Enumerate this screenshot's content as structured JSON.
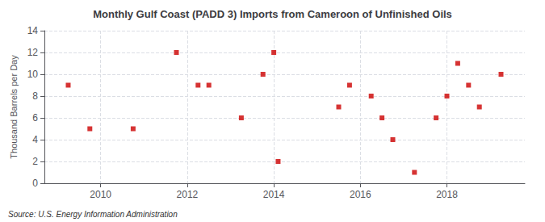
{
  "chart_data": {
    "type": "scatter",
    "title": "Monthly Gulf Coast (PADD 3) Imports from Cameroon of Unfinished Oils",
    "y_label": "Thousand Barrels per Day",
    "annotation": "Source: U.S. Energy Information Administration",
    "x": [
      2009.25,
      2009.75,
      2010.75,
      2011.75,
      2012.25,
      2012.5,
      2013.25,
      2013.75,
      2014.0,
      2014.1,
      2015.5,
      2015.75,
      2016.25,
      2016.5,
      2016.75,
      2017.25,
      2017.75,
      2018.0,
      2018.25,
      2018.5,
      2018.75,
      2019.25
    ],
    "values": [
      9,
      5,
      5,
      12,
      9,
      9,
      6,
      10,
      12,
      2,
      7,
      9,
      8,
      6,
      4,
      1,
      6,
      8,
      11,
      9,
      7,
      10
    ],
    "color": "#cc0000",
    "marker": "square",
    "xlim": [
      2008.7,
      2019.8
    ],
    "xticks": [
      2010,
      2012,
      2014,
      2016,
      2018
    ],
    "ylim": [
      0,
      14
    ],
    "yticks": [
      0,
      2,
      4,
      6,
      8,
      10,
      12,
      14
    ],
    "grid": true
  }
}
